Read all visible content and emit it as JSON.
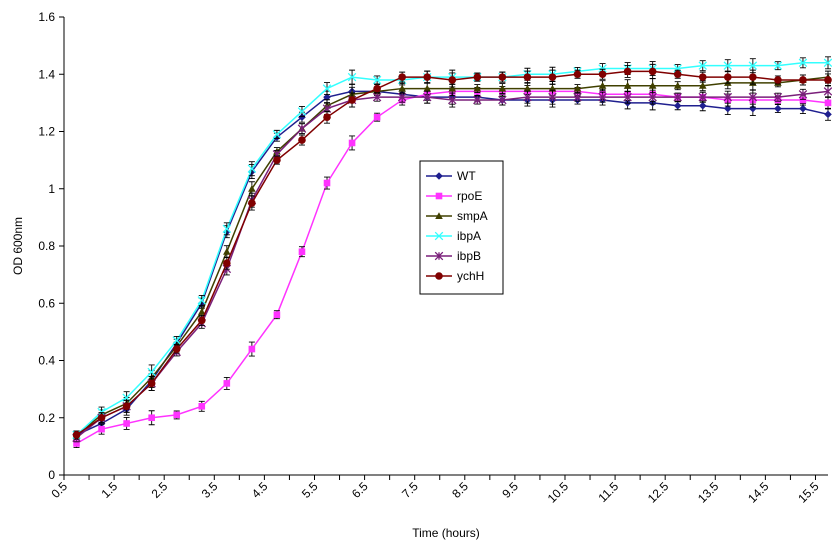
{
  "chart_data": {
    "type": "line",
    "title": "",
    "xlabel": "Time (hours)",
    "ylabel": "OD 600nm",
    "x_ticks": [
      "0.5",
      "1.5",
      "2.5",
      "3.5",
      "4.5",
      "5.5",
      "6.5",
      "7.5",
      "8.5",
      "9.5",
      "10.5",
      "11.5",
      "12.5",
      "13.5",
      "14.5",
      "15.5"
    ],
    "y_ticks": [
      "0",
      "0.2",
      "0.4",
      "0.6",
      "0.8",
      "1",
      "1.2",
      "1.4",
      "1.6"
    ],
    "xlim": [
      0.5,
      15.75
    ],
    "ylim": [
      0,
      1.6
    ],
    "grid": false,
    "legend_position": "center",
    "x": [
      0.75,
      1.25,
      1.75,
      2.25,
      2.75,
      3.25,
      3.75,
      4.25,
      4.75,
      5.25,
      5.75,
      6.25,
      6.75,
      7.25,
      7.75,
      8.25,
      8.75,
      9.25,
      9.75,
      10.25,
      10.75,
      11.25,
      11.75,
      12.25,
      12.75,
      13.25,
      13.75,
      14.25,
      14.75,
      15.25,
      15.75
    ],
    "series": [
      {
        "name": "WT",
        "color": "#1f1f8f",
        "marker": "diamond",
        "values": [
          0.14,
          0.18,
          0.23,
          0.33,
          0.46,
          0.6,
          0.85,
          1.06,
          1.18,
          1.25,
          1.32,
          1.34,
          1.34,
          1.33,
          1.32,
          1.32,
          1.32,
          1.31,
          1.31,
          1.31,
          1.31,
          1.31,
          1.3,
          1.3,
          1.29,
          1.29,
          1.28,
          1.28,
          1.28,
          1.28,
          1.26
        ]
      },
      {
        "name": "rpoE",
        "color": "#ff33ff",
        "marker": "square",
        "values": [
          0.11,
          0.16,
          0.18,
          0.2,
          0.21,
          0.24,
          0.32,
          0.44,
          0.56,
          0.78,
          1.02,
          1.16,
          1.25,
          1.31,
          1.33,
          1.34,
          1.34,
          1.34,
          1.34,
          1.34,
          1.34,
          1.33,
          1.33,
          1.33,
          1.32,
          1.32,
          1.31,
          1.31,
          1.31,
          1.31,
          1.3
        ]
      },
      {
        "name": "smpA",
        "color": "#404000",
        "marker": "triangle",
        "values": [
          0.14,
          0.21,
          0.25,
          0.34,
          0.45,
          0.57,
          0.78,
          1.0,
          1.13,
          1.21,
          1.29,
          1.33,
          1.34,
          1.35,
          1.35,
          1.35,
          1.35,
          1.35,
          1.35,
          1.35,
          1.35,
          1.36,
          1.36,
          1.36,
          1.36,
          1.36,
          1.37,
          1.37,
          1.37,
          1.38,
          1.39
        ]
      },
      {
        "name": "ibpA",
        "color": "#33ffff",
        "marker": "x",
        "values": [
          0.14,
          0.22,
          0.27,
          0.36,
          0.47,
          0.61,
          0.86,
          1.07,
          1.19,
          1.27,
          1.35,
          1.39,
          1.38,
          1.38,
          1.39,
          1.39,
          1.39,
          1.39,
          1.4,
          1.4,
          1.41,
          1.42,
          1.42,
          1.42,
          1.42,
          1.43,
          1.43,
          1.43,
          1.43,
          1.44,
          1.44
        ]
      },
      {
        "name": "ibpB",
        "color": "#7a1f7a",
        "marker": "star",
        "values": [
          0.13,
          0.2,
          0.24,
          0.32,
          0.43,
          0.53,
          0.72,
          0.96,
          1.12,
          1.21,
          1.28,
          1.31,
          1.32,
          1.32,
          1.32,
          1.31,
          1.31,
          1.31,
          1.32,
          1.32,
          1.32,
          1.32,
          1.32,
          1.32,
          1.32,
          1.32,
          1.32,
          1.32,
          1.32,
          1.33,
          1.34
        ]
      },
      {
        "name": "ychH",
        "color": "#800000",
        "marker": "circle",
        "values": [
          0.14,
          0.2,
          0.24,
          0.32,
          0.44,
          0.54,
          0.74,
          0.95,
          1.1,
          1.17,
          1.25,
          1.31,
          1.35,
          1.39,
          1.39,
          1.38,
          1.39,
          1.39,
          1.39,
          1.39,
          1.4,
          1.4,
          1.41,
          1.41,
          1.4,
          1.39,
          1.39,
          1.39,
          1.38,
          1.38,
          1.38
        ]
      }
    ]
  }
}
